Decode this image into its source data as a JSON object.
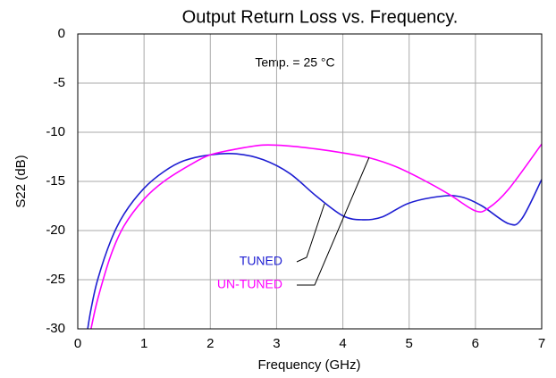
{
  "chart_data": {
    "type": "line",
    "title": "Output Return Loss vs. Frequency.",
    "xlabel": "Frequency (GHz)",
    "ylabel": "S22 (dB)",
    "annotation": "Temp. = 25 °C",
    "xlim": [
      0,
      7
    ],
    "xticks": [
      0,
      1,
      2,
      3,
      4,
      5,
      6,
      7
    ],
    "ylim": [
      -30,
      0
    ],
    "yticks": [
      -30,
      -25,
      -20,
      -15,
      -10,
      -5,
      0
    ],
    "grid": true,
    "series": [
      {
        "name": "TUNED",
        "color": "#1e1ed2",
        "x": [
          0.15,
          0.2,
          0.3,
          0.5,
          0.7,
          1.0,
          1.3,
          1.6,
          2.0,
          2.4,
          2.8,
          3.2,
          3.6,
          4.0,
          4.3,
          4.6,
          5.0,
          5.5,
          5.8,
          6.1,
          6.5,
          6.7,
          7.0
        ],
        "values": [
          -30,
          -28,
          -25,
          -21,
          -18.3,
          -15.7,
          -14,
          -12.9,
          -12.3,
          -12.2,
          -12.8,
          -14.2,
          -16.5,
          -18.5,
          -18.9,
          -18.6,
          -17.2,
          -16.5,
          -16.6,
          -17.5,
          -19.3,
          -18.8,
          -14.8
        ]
      },
      {
        "name": "UN-TUNED",
        "color": "#ff00ff",
        "x": [
          0.2,
          0.3,
          0.5,
          0.7,
          1.0,
          1.3,
          1.7,
          2.0,
          2.4,
          2.8,
          3.2,
          3.6,
          4.0,
          4.4,
          4.8,
          5.2,
          5.6,
          6.0,
          6.2,
          6.5,
          7.0
        ],
        "values": [
          -30,
          -27,
          -22.5,
          -19.5,
          -16.8,
          -15,
          -13.3,
          -12.3,
          -11.7,
          -11.3,
          -11.4,
          -11.7,
          -12.1,
          -12.6,
          -13.5,
          -14.8,
          -16.3,
          -18.0,
          -17.7,
          -15.8,
          -11.2
        ]
      }
    ]
  }
}
